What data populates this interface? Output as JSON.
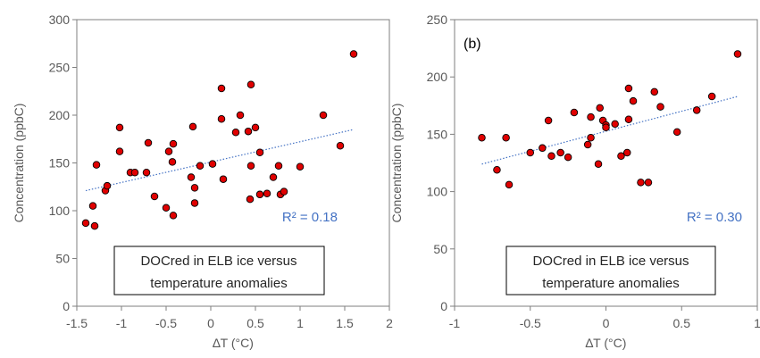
{
  "chart_data": [
    {
      "type": "scatter",
      "panel_label": "",
      "xlabel": "∆T (°C)",
      "ylabel": "Concentration (ppbC)",
      "xlim": [
        -1.5,
        2
      ],
      "ylim": [
        0,
        300
      ],
      "xticks": [
        "-1.5",
        "-1",
        "-0.5",
        "0",
        "0.5",
        "1",
        "1.5",
        "2"
      ],
      "yticks": [
        "0",
        "50",
        "100",
        "150",
        "200",
        "250",
        "300"
      ],
      "grid": false,
      "series": [
        {
          "marker_color": "#e00000",
          "points": [
            [
              -1.4,
              87
            ],
            [
              -1.32,
              105
            ],
            [
              -1.3,
              84
            ],
            [
              -1.28,
              148
            ],
            [
              -1.18,
              121
            ],
            [
              -1.16,
              126
            ],
            [
              -1.02,
              187
            ],
            [
              -1.02,
              162
            ],
            [
              -0.9,
              140
            ],
            [
              -0.85,
              140
            ],
            [
              -0.72,
              140
            ],
            [
              -0.7,
              171
            ],
            [
              -0.63,
              115
            ],
            [
              -0.5,
              103
            ],
            [
              -0.47,
              162
            ],
            [
              -0.43,
              151
            ],
            [
              -0.42,
              170
            ],
            [
              -0.42,
              95
            ],
            [
              -0.22,
              135
            ],
            [
              -0.2,
              188
            ],
            [
              -0.18,
              124
            ],
            [
              -0.18,
              108
            ],
            [
              -0.12,
              147
            ],
            [
              0.02,
              149
            ],
            [
              0.12,
              228
            ],
            [
              0.12,
              196
            ],
            [
              0.14,
              133
            ],
            [
              0.28,
              182
            ],
            [
              0.33,
              200
            ],
            [
              0.42,
              183
            ],
            [
              0.44,
              112
            ],
            [
              0.45,
              232
            ],
            [
              0.45,
              147
            ],
            [
              0.5,
              187
            ],
            [
              0.55,
              117
            ],
            [
              0.55,
              161
            ],
            [
              0.63,
              118
            ],
            [
              0.7,
              135
            ],
            [
              0.76,
              147
            ],
            [
              0.78,
              117
            ],
            [
              0.82,
              120
            ],
            [
              1.0,
              146
            ],
            [
              1.26,
              200
            ],
            [
              1.45,
              168
            ],
            [
              1.6,
              264
            ]
          ]
        }
      ],
      "trendline": {
        "x": [
          -1.4,
          1.6
        ],
        "y": [
          121,
          185
        ]
      },
      "r2_text": "R² = 0.18",
      "annotation": [
        "DOCred in ELB ice versus",
        "temperature anomalies"
      ]
    },
    {
      "type": "scatter",
      "panel_label": "(b)",
      "xlabel": "∆T (°C)",
      "ylabel": "Concentration (ppbC)",
      "xlim": [
        -1,
        1
      ],
      "ylim": [
        0,
        250
      ],
      "xticks": [
        "-1",
        "-0.5",
        "0",
        "0.5",
        "1"
      ],
      "yticks": [
        "0",
        "50",
        "100",
        "150",
        "200",
        "250"
      ],
      "grid": false,
      "series": [
        {
          "marker_color": "#e00000",
          "points": [
            [
              -0.82,
              147
            ],
            [
              -0.72,
              119
            ],
            [
              -0.66,
              147
            ],
            [
              -0.64,
              106
            ],
            [
              -0.5,
              134
            ],
            [
              -0.42,
              138
            ],
            [
              -0.38,
              162
            ],
            [
              -0.36,
              131
            ],
            [
              -0.3,
              134
            ],
            [
              -0.25,
              130
            ],
            [
              -0.21,
              169
            ],
            [
              -0.12,
              141
            ],
            [
              -0.1,
              165
            ],
            [
              -0.1,
              147
            ],
            [
              -0.05,
              124
            ],
            [
              -0.04,
              173
            ],
            [
              -0.02,
              162
            ],
            [
              0.0,
              158
            ],
            [
              0.0,
              156
            ],
            [
              0.06,
              159
            ],
            [
              0.1,
              131
            ],
            [
              0.14,
              134
            ],
            [
              0.15,
              190
            ],
            [
              0.15,
              163
            ],
            [
              0.18,
              179
            ],
            [
              0.23,
              108
            ],
            [
              0.28,
              108
            ],
            [
              0.32,
              187
            ],
            [
              0.36,
              174
            ],
            [
              0.47,
              152
            ],
            [
              0.6,
              171
            ],
            [
              0.7,
              183
            ],
            [
              0.87,
              220
            ]
          ]
        }
      ],
      "trendline": {
        "x": [
          -0.82,
          0.87
        ],
        "y": [
          124,
          183
        ]
      },
      "r2_text": "R² = 0.30",
      "annotation": [
        "DOCred in ELB ice versus",
        "temperature anomalies"
      ]
    }
  ]
}
